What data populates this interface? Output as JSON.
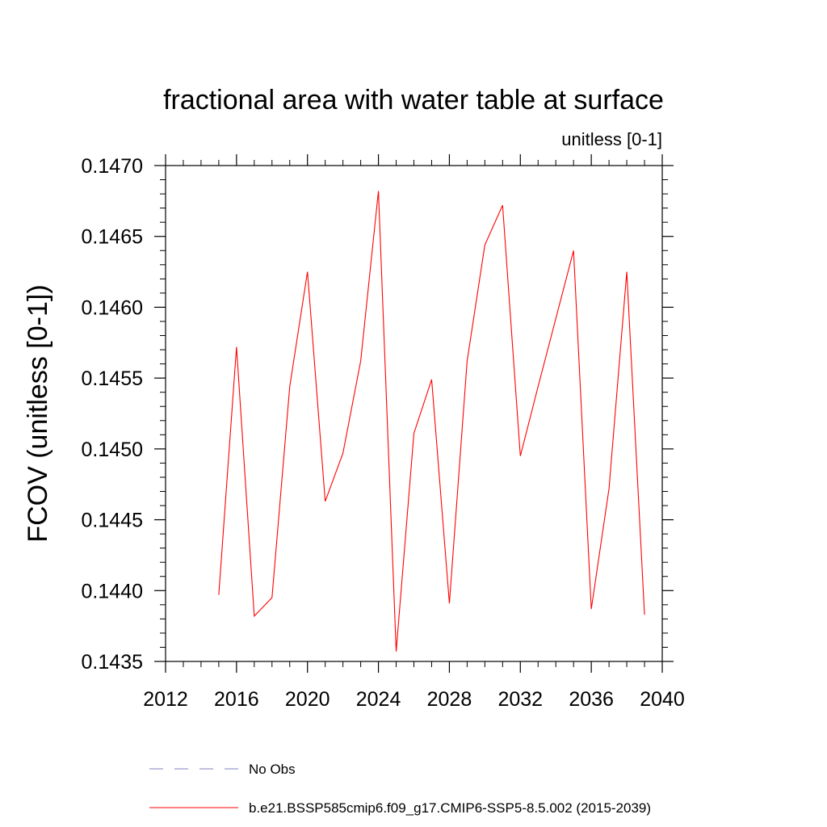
{
  "chart_data": {
    "type": "line",
    "title": "fractional area with water table at surface",
    "subtitle": "unitless [0-1]",
    "xlabel": "",
    "ylabel": "FCOV  (unitless [0-1])",
    "xlim": [
      2012,
      2040
    ],
    "ylim": [
      0.1435,
      0.147
    ],
    "x_ticks": [
      "2012",
      "2016",
      "2020",
      "2024",
      "2028",
      "2032",
      "2036",
      "2040"
    ],
    "y_ticks": [
      "0.1435",
      "0.1440",
      "0.1445",
      "0.1450",
      "0.1455",
      "0.1460",
      "0.1465",
      "0.1470"
    ],
    "grid": false,
    "legend_position": "bottom",
    "series": [
      {
        "name": "b.e21.BSSP585cmip6.f09_g17.CMIP6-SSP5-8.5.002 (2015-2039)",
        "color": "#ff0000",
        "style": "solid",
        "x": [
          2015,
          2016,
          2017,
          2018,
          2019,
          2020,
          2021,
          2022,
          2023,
          2024,
          2025,
          2026,
          2027,
          2028,
          2029,
          2030,
          2031,
          2032,
          2033,
          2034,
          2035,
          2036,
          2037,
          2038,
          2039
        ],
        "values": [
          0.14397,
          0.14572,
          0.14382,
          0.14395,
          0.14544,
          0.14625,
          0.14463,
          0.14497,
          0.14562,
          0.14682,
          0.14357,
          0.14511,
          0.14549,
          0.14391,
          0.14562,
          0.14644,
          0.14672,
          0.14495,
          0.14544,
          0.14592,
          0.1464,
          0.14387,
          0.14472,
          0.14625,
          0.14383
        ]
      }
    ],
    "legend": [
      {
        "label": "No Obs",
        "color": "#8080c0",
        "style": "dashed"
      },
      {
        "label": "b.e21.BSSP585cmip6.f09_g17.CMIP6-SSP5-8.5.002 (2015-2039)",
        "color": "#ff0000",
        "style": "solid"
      }
    ]
  }
}
